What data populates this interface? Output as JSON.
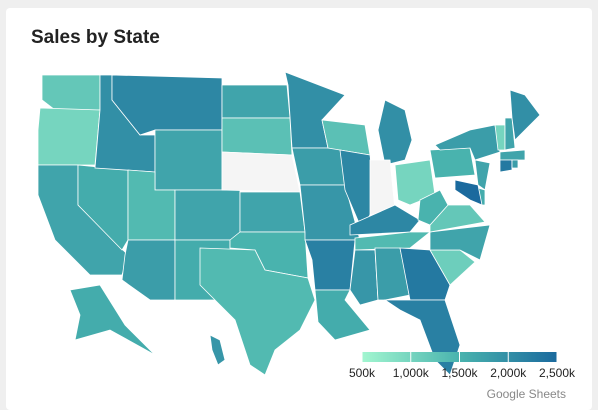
{
  "chart_data": {
    "type": "geo",
    "title": "Sales by State",
    "source": "Google Sheets",
    "values": [
      1200000,
      1000000,
      1700000,
      1600000,
      2000000,
      2100000,
      1700000,
      1400000,
      1800000,
      1700000,
      1600000,
      1700000,
      1300000,
      null,
      1700000,
      1500000,
      1400000,
      2000000,
      1800000,
      1900000,
      2200000,
      1600000,
      1300000,
      2100000,
      2000000,
      null,
      1000000,
      2100000,
      1400000,
      1900000,
      1800000,
      2300000,
      2200000,
      1100000,
      1700000,
      1200000,
      1500000,
      1500000,
      1800000,
      1000000,
      1700000,
      2000000,
      1700000,
      2300000,
      1800000,
      1700000,
      1600000,
      2500000,
      1600000,
      1900000
    ],
    "colorlim": [
      500000,
      2500000
    ],
    "colors": [
      "#a2f6d0",
      "#49b3ae",
      "#1b6a9e"
    ],
    "null_color": "#f5f5f5",
    "legend_ticks": [
      {
        "value": 500000,
        "label": "500k"
      },
      {
        "value": 1000000,
        "label": "1,000k"
      },
      {
        "value": 1500000,
        "label": "1,500k"
      },
      {
        "value": 2000000,
        "label": "2,000k"
      },
      {
        "value": 2500000,
        "label": "2,500k"
      }
    ]
  }
}
